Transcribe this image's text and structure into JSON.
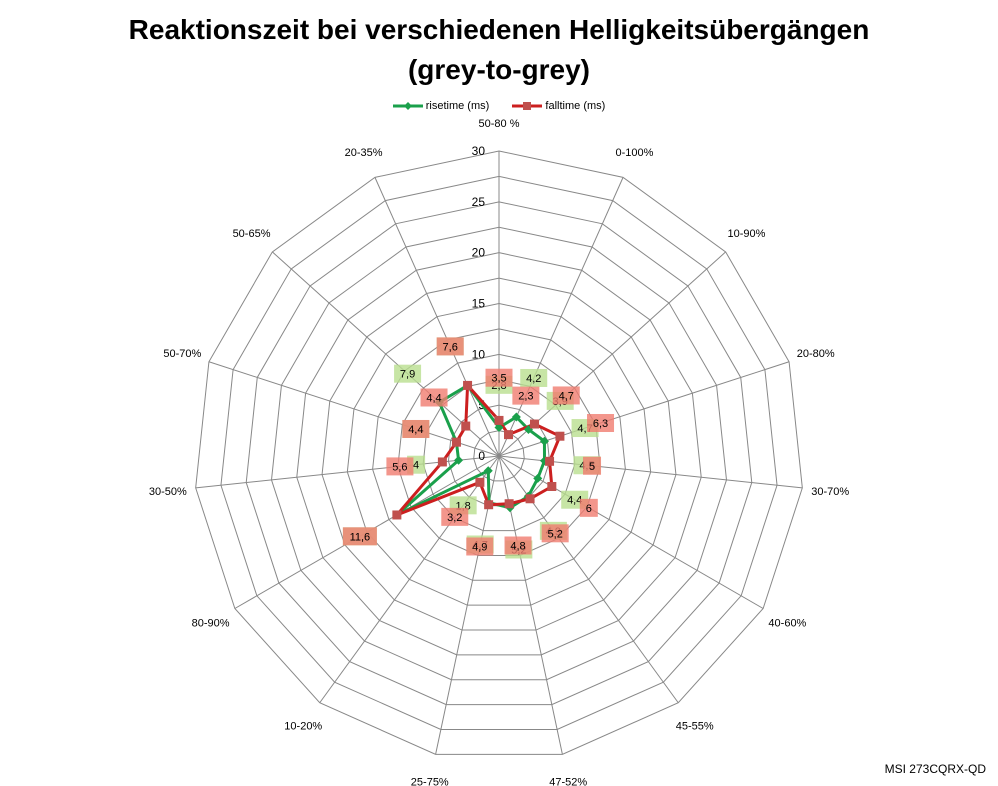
{
  "title": {
    "line1": "Reaktionszeit bei verschiedenen Helligkeitsübergängen",
    "line2": "(grey-to-grey)"
  },
  "source_label": "MSI 273CQRX-QD",
  "colors": {
    "rise": "#1aa04b",
    "fall": "#cc1f1f",
    "fall_marker": "#c0504d",
    "grid": "#888888",
    "rise_label_bg": "#b9df8f",
    "fall_label_bg": "#f07c6f",
    "label_overlap_bg": "#e0644e"
  },
  "chart_data": {
    "type": "radar",
    "title": "Reaktionszeit bei verschiedenen Helligkeitsübergängen (grey-to-grey)",
    "categories": [
      "50-80 %",
      "0-100%",
      "10-90%",
      "20-80%",
      "30-70%",
      "40-60%",
      "45-55%",
      "47-52%",
      "25-75%",
      "10-20%",
      "80-90%",
      "30-50%",
      "50-70%",
      "50-65%",
      "20-35%"
    ],
    "rmax": 30,
    "rticks": [
      0,
      5,
      10,
      15,
      20,
      25,
      30
    ],
    "legend_position": "top",
    "series": [
      {
        "name": "risetime (ms)",
        "values": [
          2.8,
          4.2,
          3.9,
          4.7,
          4.5,
          4.4,
          4.9,
          5.2,
          4.7,
          1.8,
          11.6,
          4.0,
          4.4,
          7.9,
          7.6
        ],
        "labels": [
          "2,8",
          "4,2",
          "3,9",
          "4,7",
          "4,5",
          "4,4",
          "4,9",
          "5,2",
          "4,7",
          "1,8",
          "11,6",
          "4",
          "4,4",
          "7,9",
          "7,6"
        ]
      },
      {
        "name": "falltime (ms)",
        "values": [
          3.5,
          2.3,
          4.7,
          6.3,
          5.0,
          6.0,
          5.2,
          4.8,
          4.9,
          3.2,
          11.6,
          5.6,
          4.4,
          4.4,
          7.6
        ],
        "labels": [
          "3,5",
          "2,3",
          "4,7",
          "6,3",
          "5",
          "6",
          "5,2",
          "4,8",
          "4,9",
          "3,2",
          "11,6",
          "5,6",
          "4,4",
          "4,4",
          "7,6"
        ]
      }
    ]
  }
}
